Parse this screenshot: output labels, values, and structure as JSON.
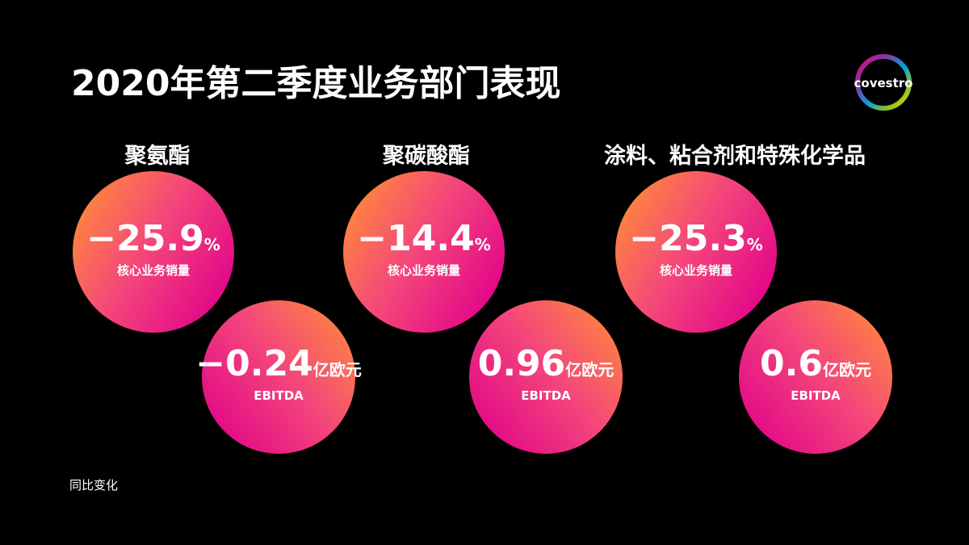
{
  "header": {
    "title": "2020年第二季度业务部门表现",
    "logo": "covestro"
  },
  "segments": [
    {
      "name": "聚氨酯",
      "volume": {
        "value": "−25.9",
        "unit": "%",
        "label": "核心业务销量"
      },
      "ebitda": {
        "value": "−0.24",
        "unit": "亿欧元",
        "label": "EBITDA"
      }
    },
    {
      "name": "聚碳酸酯",
      "volume": {
        "value": "−14.4",
        "unit": "%",
        "label": "核心业务销量"
      },
      "ebitda": {
        "value": "0.96",
        "unit": "亿欧元",
        "label": "EBITDA"
      }
    },
    {
      "name": "涂料、粘合剂和特殊化学品",
      "volume": {
        "value": "−25.3",
        "unit": "%",
        "label": "核心业务销量"
      },
      "ebitda": {
        "value": "0.6",
        "unit": "亿欧元",
        "label": "EBITDA"
      }
    }
  ],
  "footnote": "同比变化"
}
